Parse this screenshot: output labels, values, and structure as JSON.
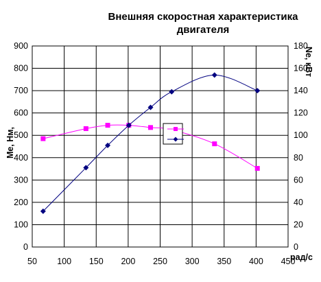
{
  "chart_data": {
    "type": "line",
    "title_lines": [
      "Внешняя скоростная характеристика",
      "двигателя"
    ],
    "xlabel": "рад/с",
    "ylabel_left": "Ме, Нм,",
    "ylabel_right": "Nе, кВт",
    "xlim": [
      50,
      450
    ],
    "ylim_left": [
      0,
      900
    ],
    "ylim_right": [
      0,
      180
    ],
    "xticks": [
      "50",
      "100",
      "150",
      "200",
      "250",
      "300",
      "350",
      "400",
      "450"
    ],
    "yticks_left": [
      "0",
      "100",
      "200",
      "300",
      "400",
      "500",
      "600",
      "700",
      "800",
      "900"
    ],
    "yticks_right": [
      "0",
      "20",
      "40",
      "60",
      "80",
      "100",
      "120",
      "140",
      "160",
      "180"
    ],
    "grid": true,
    "series": [
      {
        "axis": "left",
        "color": "#ff00ff",
        "marker": "square",
        "x": [
          67,
          134,
          168,
          201,
          235,
          268,
          335,
          402
        ],
        "y": [
          485,
          530,
          545,
          545,
          535,
          525,
          462,
          352
        ]
      },
      {
        "axis": "right",
        "color": "#000080",
        "marker": "diamond",
        "x": [
          67,
          134,
          168,
          201,
          235,
          268,
          335,
          402
        ],
        "y": [
          32,
          71,
          91,
          109,
          125,
          139,
          154,
          140
        ]
      }
    ]
  }
}
